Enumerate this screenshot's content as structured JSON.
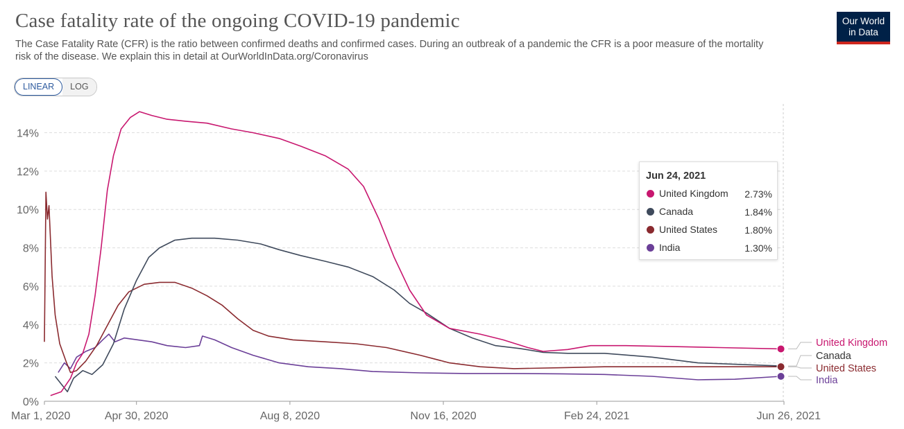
{
  "header": {
    "title": "Case fatality rate of the ongoing COVID-19 pandemic",
    "subtitle": "The Case Fatality Rate (CFR) is the ratio between confirmed deaths and confirmed cases. During an outbreak of a pandemic the CFR is a poor measure of the mortality risk of the disease. We explain this in detail at OurWorldInData.org/Coronavirus",
    "logo_line1": "Our World",
    "logo_line2": "in Data"
  },
  "controls": {
    "linear_label": "LINEAR",
    "log_label": "LOG",
    "active": "LINEAR"
  },
  "tooltip": {
    "date": "Jun 24, 2021",
    "rows": [
      {
        "name": "United Kingdom",
        "value": "2.73%",
        "color": "#c8176f"
      },
      {
        "name": "Canada",
        "value": "1.84%",
        "color": "#3f4a5c"
      },
      {
        "name": "United States",
        "value": "1.80%",
        "color": "#8a2a2f"
      },
      {
        "name": "India",
        "value": "1.30%",
        "color": "#6b3f98"
      }
    ]
  },
  "chart_data": {
    "type": "line",
    "x_ticks": [
      "Mar 1, 2020",
      "Apr 30, 2020",
      "Aug 8, 2020",
      "Nov 16, 2020",
      "Feb 24, 2021",
      "Jun 26, 2021"
    ],
    "y_ticks": [
      "0%",
      "2%",
      "4%",
      "6%",
      "8%",
      "10%",
      "12%",
      "14%"
    ],
    "xlim": [
      "2020-03-01",
      "2021-06-26"
    ],
    "ylim": [
      0,
      15.5
    ],
    "grid": "horizontal dashed",
    "series": [
      {
        "name": "United Kingdom",
        "color": "#c8176f",
        "end_value": 2.73,
        "points": [
          [
            "2020-03-05",
            0.3
          ],
          [
            "2020-03-12",
            0.5
          ],
          [
            "2020-03-18",
            1.2
          ],
          [
            "2020-03-22",
            2.0
          ],
          [
            "2020-03-26",
            2.5
          ],
          [
            "2020-03-30",
            3.5
          ],
          [
            "2020-04-03",
            5.5
          ],
          [
            "2020-04-07",
            8.0
          ],
          [
            "2020-04-11",
            11.0
          ],
          [
            "2020-04-15",
            12.8
          ],
          [
            "2020-04-20",
            14.2
          ],
          [
            "2020-04-26",
            14.8
          ],
          [
            "2020-05-02",
            15.1
          ],
          [
            "2020-05-10",
            14.9
          ],
          [
            "2020-05-20",
            14.7
          ],
          [
            "2020-06-01",
            14.6
          ],
          [
            "2020-06-15",
            14.5
          ],
          [
            "2020-07-01",
            14.2
          ],
          [
            "2020-07-15",
            14.0
          ],
          [
            "2020-08-01",
            13.7
          ],
          [
            "2020-08-15",
            13.3
          ],
          [
            "2020-08-31",
            12.8
          ],
          [
            "2020-09-15",
            12.1
          ],
          [
            "2020-09-25",
            11.2
          ],
          [
            "2020-10-05",
            9.5
          ],
          [
            "2020-10-15",
            7.5
          ],
          [
            "2020-10-25",
            5.8
          ],
          [
            "2020-11-05",
            4.5
          ],
          [
            "2020-11-20",
            3.8
          ],
          [
            "2020-12-10",
            3.5
          ],
          [
            "2020-12-25",
            3.2
          ],
          [
            "2021-01-10",
            2.8
          ],
          [
            "2021-01-20",
            2.6
          ],
          [
            "2021-02-05",
            2.7
          ],
          [
            "2021-02-20",
            2.9
          ],
          [
            "2021-03-15",
            2.9
          ],
          [
            "2021-04-15",
            2.85
          ],
          [
            "2021-05-15",
            2.8
          ],
          [
            "2021-06-24",
            2.73
          ]
        ]
      },
      {
        "name": "Canada",
        "color": "#3f4a5c",
        "end_value": 1.84,
        "points": [
          [
            "2020-03-08",
            1.3
          ],
          [
            "2020-03-12",
            0.9
          ],
          [
            "2020-03-16",
            0.5
          ],
          [
            "2020-03-20",
            1.2
          ],
          [
            "2020-03-26",
            1.6
          ],
          [
            "2020-04-01",
            1.4
          ],
          [
            "2020-04-08",
            1.9
          ],
          [
            "2020-04-15",
            3.0
          ],
          [
            "2020-04-22",
            4.8
          ],
          [
            "2020-04-30",
            6.3
          ],
          [
            "2020-05-08",
            7.5
          ],
          [
            "2020-05-15",
            8.0
          ],
          [
            "2020-05-25",
            8.4
          ],
          [
            "2020-06-05",
            8.5
          ],
          [
            "2020-06-20",
            8.5
          ],
          [
            "2020-07-05",
            8.4
          ],
          [
            "2020-07-20",
            8.2
          ],
          [
            "2020-08-01",
            7.9
          ],
          [
            "2020-08-15",
            7.6
          ],
          [
            "2020-08-31",
            7.3
          ],
          [
            "2020-09-15",
            7.0
          ],
          [
            "2020-10-01",
            6.5
          ],
          [
            "2020-10-15",
            5.8
          ],
          [
            "2020-10-25",
            5.1
          ],
          [
            "2020-11-05",
            4.6
          ],
          [
            "2020-11-20",
            3.8
          ],
          [
            "2020-12-05",
            3.3
          ],
          [
            "2020-12-20",
            2.9
          ],
          [
            "2021-01-05",
            2.75
          ],
          [
            "2021-01-20",
            2.55
          ],
          [
            "2021-02-05",
            2.5
          ],
          [
            "2021-03-01",
            2.5
          ],
          [
            "2021-04-01",
            2.3
          ],
          [
            "2021-05-01",
            2.0
          ],
          [
            "2021-06-24",
            1.84
          ]
        ]
      },
      {
        "name": "United States",
        "color": "#8a2a2f",
        "end_value": 1.8,
        "points": [
          [
            "2020-03-01",
            3.1
          ],
          [
            "2020-03-02",
            10.9
          ],
          [
            "2020-03-03",
            9.5
          ],
          [
            "2020-03-04",
            10.2
          ],
          [
            "2020-03-06",
            6.5
          ],
          [
            "2020-03-08",
            4.5
          ],
          [
            "2020-03-11",
            3.0
          ],
          [
            "2020-03-15",
            2.1
          ],
          [
            "2020-03-18",
            1.5
          ],
          [
            "2020-03-22",
            1.6
          ],
          [
            "2020-03-28",
            2.1
          ],
          [
            "2020-04-04",
            2.9
          ],
          [
            "2020-04-10",
            3.8
          ],
          [
            "2020-04-18",
            5.0
          ],
          [
            "2020-04-25",
            5.7
          ],
          [
            "2020-05-05",
            6.1
          ],
          [
            "2020-05-15",
            6.2
          ],
          [
            "2020-05-25",
            6.2
          ],
          [
            "2020-06-05",
            5.9
          ],
          [
            "2020-06-15",
            5.5
          ],
          [
            "2020-06-25",
            5.0
          ],
          [
            "2020-07-05",
            4.3
          ],
          [
            "2020-07-15",
            3.7
          ],
          [
            "2020-07-25",
            3.4
          ],
          [
            "2020-08-10",
            3.2
          ],
          [
            "2020-08-31",
            3.1
          ],
          [
            "2020-09-20",
            3.0
          ],
          [
            "2020-10-10",
            2.8
          ],
          [
            "2020-11-01",
            2.4
          ],
          [
            "2020-11-20",
            2.0
          ],
          [
            "2020-12-10",
            1.8
          ],
          [
            "2021-01-01",
            1.7
          ],
          [
            "2021-02-01",
            1.75
          ],
          [
            "2021-03-01",
            1.8
          ],
          [
            "2021-04-01",
            1.8
          ],
          [
            "2021-05-01",
            1.8
          ],
          [
            "2021-06-24",
            1.8
          ]
        ]
      },
      {
        "name": "India",
        "color": "#6b3f98",
        "end_value": 1.3,
        "points": [
          [
            "2020-03-10",
            1.5
          ],
          [
            "2020-03-14",
            2.0
          ],
          [
            "2020-03-18",
            1.7
          ],
          [
            "2020-03-22",
            2.3
          ],
          [
            "2020-03-28",
            2.6
          ],
          [
            "2020-04-03",
            2.8
          ],
          [
            "2020-04-08",
            3.2
          ],
          [
            "2020-04-12",
            3.5
          ],
          [
            "2020-04-16",
            3.1
          ],
          [
            "2020-04-22",
            3.3
          ],
          [
            "2020-05-01",
            3.2
          ],
          [
            "2020-05-10",
            3.1
          ],
          [
            "2020-05-20",
            2.9
          ],
          [
            "2020-06-01",
            2.8
          ],
          [
            "2020-06-10",
            2.9
          ],
          [
            "2020-06-12",
            3.4
          ],
          [
            "2020-06-20",
            3.2
          ],
          [
            "2020-07-01",
            2.8
          ],
          [
            "2020-07-15",
            2.4
          ],
          [
            "2020-08-01",
            2.0
          ],
          [
            "2020-08-20",
            1.8
          ],
          [
            "2020-09-10",
            1.7
          ],
          [
            "2020-10-01",
            1.55
          ],
          [
            "2020-11-01",
            1.48
          ],
          [
            "2020-12-01",
            1.45
          ],
          [
            "2021-01-01",
            1.45
          ],
          [
            "2021-02-01",
            1.43
          ],
          [
            "2021-03-01",
            1.4
          ],
          [
            "2021-04-01",
            1.3
          ],
          [
            "2021-05-01",
            1.12
          ],
          [
            "2021-05-25",
            1.15
          ],
          [
            "2021-06-24",
            1.3
          ]
        ]
      }
    ]
  }
}
